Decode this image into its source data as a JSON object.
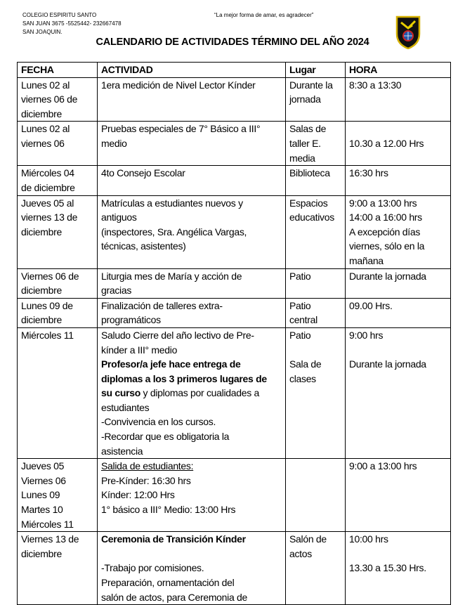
{
  "header": {
    "school_lines": "COLEGIO ESPIRITU SANTO\nSAN JUAN 3675 -5525442- 232667478\nSAN JOAQUIN.",
    "motto": "“La mejor forma de amar, es agradecer”",
    "title": "CALENDARIO DE ACTIVIDADES TÉRMINO DEL AÑO 2024",
    "logo_colors": {
      "border": "#d4b000",
      "fill": "#111111",
      "globe": "#2255aa",
      "accent": "#cc2222"
    }
  },
  "table": {
    "columns": [
      "FECHA",
      "ACTIVIDAD",
      "Lugar",
      "HORA"
    ],
    "rows": [
      {
        "fecha": "Lunes 02 al\nviernes 06 de\ndiciembre",
        "actividad": "1era medición de Nivel Lector Kínder",
        "lugar": "Durante la\njornada",
        "hora": "8:30 a 13:30"
      },
      {
        "fecha": "Lunes 02 al\nviernes 06",
        "actividad": "Pruebas especiales de 7° Básico a III°\nmedio",
        "lugar": "Salas de\ntaller E.\nmedia",
        "hora": "\n10.30 a 12.00 Hrs"
      },
      {
        "fecha": "Miércoles 04\nde diciembre",
        "actividad": "4to Consejo Escolar",
        "lugar": "Biblioteca",
        "hora": "16:30 hrs"
      },
      {
        "fecha": "Jueves 05 al\nviernes 13 de\ndiciembre",
        "actividad": "Matrículas a estudiantes nuevos y\nantiguos\n(inspectores, Sra.  Angélica Vargas,\ntécnicas, asistentes)",
        "lugar": "Espacios\neducativos",
        "hora": "9:00 a 13:00 hrs\n14:00 a 16:00 hrs\nA excepción días\nviernes, sólo en la\nmañana"
      },
      {
        "fecha": "Viernes 06 de\ndiciembre",
        "actividad": "Liturgia mes de María y acción de\ngracias",
        "lugar": "Patio",
        "hora": "Durante la jornada"
      },
      {
        "fecha": "Lunes 09 de\ndiciembre",
        "actividad": "Finalización de talleres extra-\nprogramáticos",
        "lugar": "Patio\ncentral",
        "hora": "09.00 Hrs."
      },
      {
        "fecha": "Miércoles 11",
        "actividad_a": "Saludo Cierre del año lectivo de Pre-\nkínder a III° medio\n",
        "actividad_b": "Profesor/a jefe hace entrega de\ndiplomas a los 3 primeros lugares de\nsu curso",
        "actividad_c": " y diplomas por cualidades a\nestudiantes\n-Convivencia en los cursos.\n-Recordar que es obligatoria la\nasistencia",
        "lugar": "Patio\n\nSala de\nclases",
        "hora": "9:00 hrs\n\nDurante la jornada"
      },
      {
        "fecha": "Jueves 05\nViernes 06\nLunes 09\nMartes 10\nMiércoles 11",
        "actividad_a": "Salida de estudiantes:",
        "actividad_b": "\nPre-Kínder: 16:30 hrs\nKínder: 12:00 Hrs\n1° básico a III° Medio: 13:00 Hrs",
        "lugar": "",
        "hora": "9:00 a 13:00 hrs"
      },
      {
        "fecha": "Viernes 13 de\ndiciembre",
        "actividad_a": "Ceremonia de Transición Kínder",
        "actividad_b": "\n\n-Trabajo por comisiones.\nPreparación, ornamentación del\nsalón de actos, para Ceremonia de",
        "lugar": "Salón de\nactos",
        "hora": "10:00 hrs\n\n13.30 a 15.30 Hrs."
      }
    ]
  }
}
